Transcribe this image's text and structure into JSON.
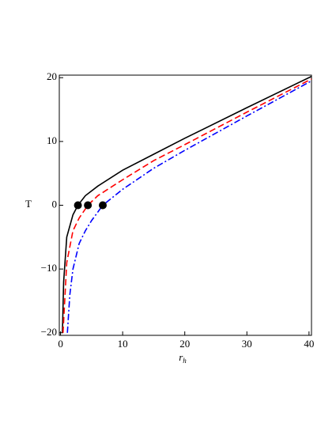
{
  "chart_data": {
    "type": "line",
    "xlabel": "r",
    "xlabel_sub": "h",
    "ylabel": "T",
    "xlim": [
      -0.2,
      40.4
    ],
    "ylim": [
      -20.4,
      20.4
    ],
    "xticks": [
      0,
      10,
      20,
      30,
      40
    ],
    "yticks": [
      {
        "value": -20,
        "label": "−20"
      },
      {
        "value": -10,
        "label": "−10"
      },
      0,
      10,
      20
    ],
    "series": [
      {
        "color": "#000000",
        "dash": "solid",
        "x": [
          0.3,
          0.5,
          1,
          2,
          2.8,
          4,
          6,
          10,
          15,
          20,
          30,
          40.4
        ],
        "values": [
          -20,
          -12,
          -5,
          -1.5,
          0,
          1.5,
          3,
          5.5,
          8,
          10.5,
          15.3,
          20.2
        ]
      },
      {
        "color": "#ff0000",
        "dash": "dash",
        "x": [
          0.4,
          1,
          2,
          3,
          4.4,
          6,
          10,
          15,
          20,
          30,
          40.4
        ],
        "values": [
          -20,
          -9,
          -4,
          -2,
          0,
          1.5,
          4,
          7,
          9.5,
          14.6,
          19.8
        ]
      },
      {
        "color": "#0000ff",
        "dash": "dashdot",
        "x": [
          1.1,
          1.5,
          2,
          3,
          4,
          5,
          6.8,
          10,
          15,
          20,
          30,
          40.4
        ],
        "values": [
          -20,
          -14,
          -10,
          -6,
          -4,
          -2.4,
          0,
          2.5,
          5.8,
          8.6,
          14,
          19.5
        ]
      }
    ],
    "markers": {
      "color": "#000000",
      "x": [
        2.8,
        4.4,
        6.8
      ],
      "values": [
        0,
        0,
        0
      ]
    }
  }
}
